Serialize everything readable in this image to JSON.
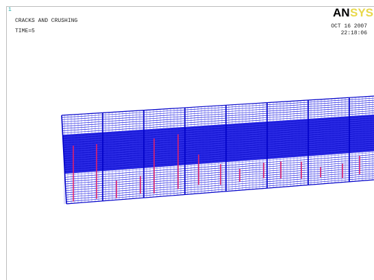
{
  "window": {
    "number": "1"
  },
  "header": {
    "title": "CRACKS AND CRUSHING",
    "time": "TIME=5"
  },
  "logo": {
    "part1": "AN",
    "part2": "SYS"
  },
  "timestamp": {
    "date": "OCT 16 2007",
    "time": "22:18:06"
  }
}
